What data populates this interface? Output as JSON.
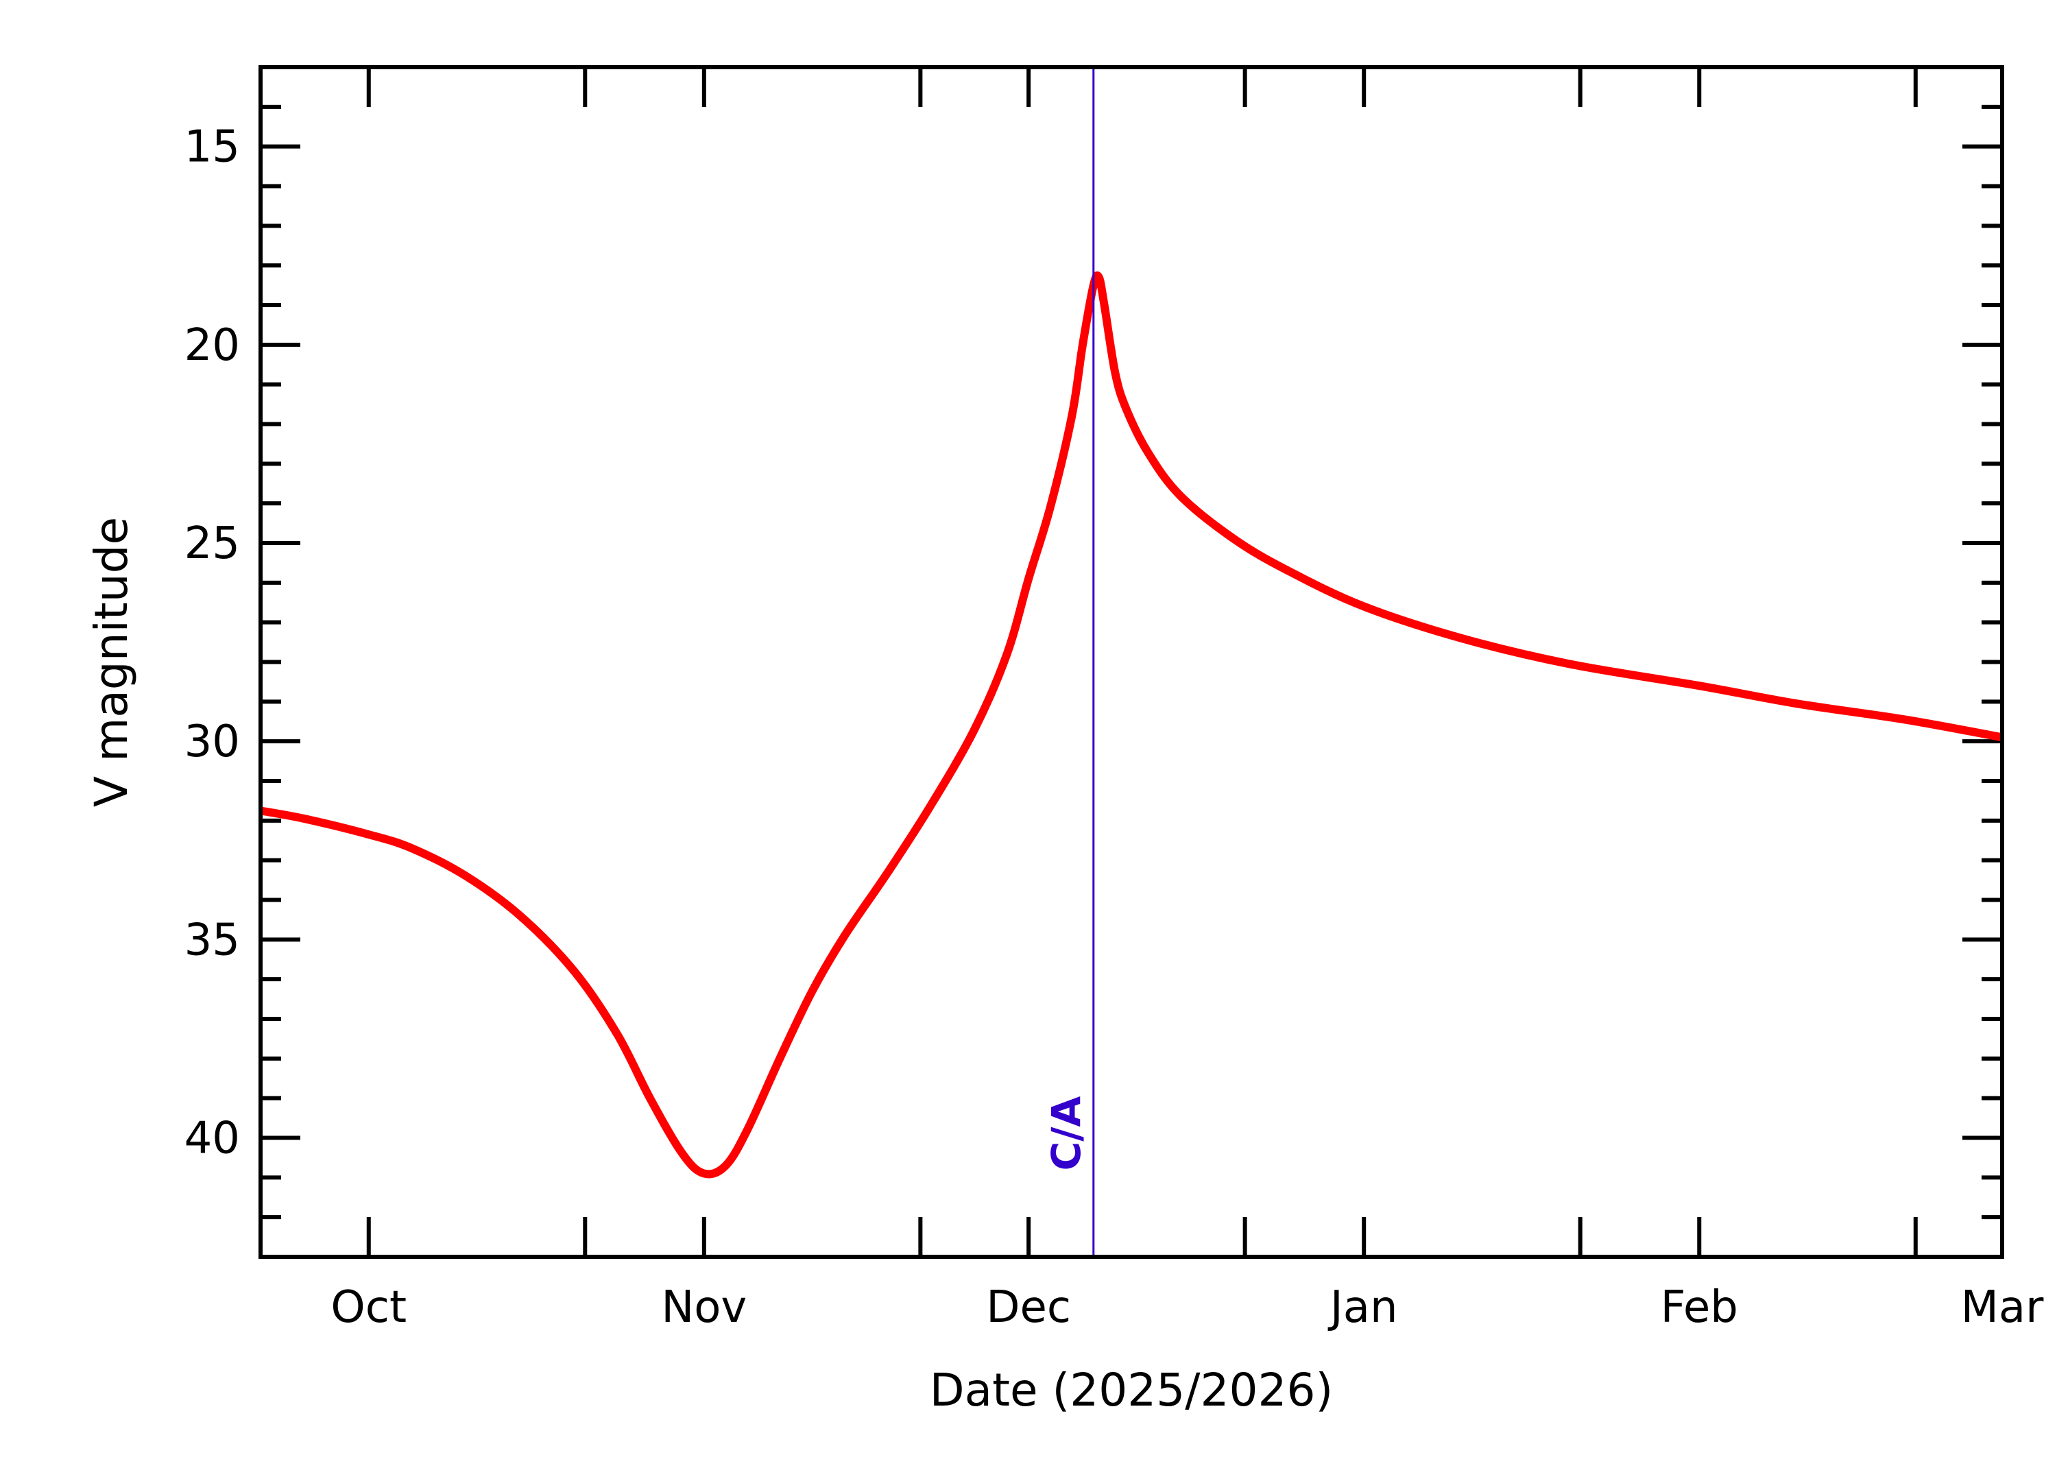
{
  "chart_data": {
    "type": "line",
    "xlabel": "Date (2025/2026)",
    "ylabel": "V magnitude",
    "x_axis": {
      "type": "date",
      "range": [
        "2025-09-21",
        "2026-03-01"
      ],
      "tick_labels": [
        {
          "label": "Oct",
          "date": "2025-10-01"
        },
        {
          "label": "Nov",
          "date": "2025-11-01"
        },
        {
          "label": "Dec",
          "date": "2025-12-01"
        },
        {
          "label": "Jan",
          "date": "2026-01-01"
        },
        {
          "label": "Feb",
          "date": "2026-02-01"
        },
        {
          "label": "Mar",
          "date": "2026-03-01"
        }
      ],
      "major_tick_dates": [
        "2025-09-21",
        "2025-10-01",
        "2025-10-21",
        "2025-11-01",
        "2025-11-21",
        "2025-12-01",
        "2025-12-21",
        "2026-01-01",
        "2026-01-21",
        "2026-02-01",
        "2026-02-21"
      ]
    },
    "y_axis": {
      "range": [
        43,
        13
      ],
      "inverted": true,
      "major_ticks": [
        15,
        20,
        25,
        30,
        35,
        40
      ],
      "tick_labels": [
        "15",
        "20",
        "25",
        "30",
        "35",
        "40"
      ],
      "minor_step": 1
    },
    "grid": false,
    "legend": "none",
    "annotation": {
      "label": "C/A",
      "date": "2025-12-07",
      "color": "#3300cc"
    },
    "series": [
      {
        "color": "#ff0000",
        "points": [
          {
            "x": "2025-09-21",
            "y": 31.75
          },
          {
            "x": "2025-09-25",
            "y": 31.95
          },
          {
            "x": "2025-10-01",
            "y": 32.35
          },
          {
            "x": "2025-10-05",
            "y": 32.7
          },
          {
            "x": "2025-10-10",
            "y": 33.4
          },
          {
            "x": "2025-10-15",
            "y": 34.4
          },
          {
            "x": "2025-10-20",
            "y": 35.8
          },
          {
            "x": "2025-10-24",
            "y": 37.4
          },
          {
            "x": "2025-10-27",
            "y": 39.0
          },
          {
            "x": "2025-10-30",
            "y": 40.4
          },
          {
            "x": "2025-11-01",
            "y": 40.9
          },
          {
            "x": "2025-11-03",
            "y": 40.7
          },
          {
            "x": "2025-11-05",
            "y": 39.8
          },
          {
            "x": "2025-11-08",
            "y": 38.0
          },
          {
            "x": "2025-11-11",
            "y": 36.3
          },
          {
            "x": "2025-11-14",
            "y": 34.9
          },
          {
            "x": "2025-11-18",
            "y": 33.3
          },
          {
            "x": "2025-11-22",
            "y": 31.6
          },
          {
            "x": "2025-11-26",
            "y": 29.7
          },
          {
            "x": "2025-11-29",
            "y": 27.8
          },
          {
            "x": "2025-12-01",
            "y": 25.9
          },
          {
            "x": "2025-12-03",
            "y": 24.1
          },
          {
            "x": "2025-12-05",
            "y": 21.8
          },
          {
            "x": "2025-12-06",
            "y": 20.0
          },
          {
            "x": "2025-12-07",
            "y": 18.5
          },
          {
            "x": "2025-12-07.5",
            "y": 18.3
          },
          {
            "x": "2025-12-08",
            "y": 19.0
          },
          {
            "x": "2025-12-09",
            "y": 20.7
          },
          {
            "x": "2025-12-10",
            "y": 21.6
          },
          {
            "x": "2025-12-12",
            "y": 22.7
          },
          {
            "x": "2025-12-15",
            "y": 23.8
          },
          {
            "x": "2025-12-20",
            "y": 24.9
          },
          {
            "x": "2025-12-25",
            "y": 25.7
          },
          {
            "x": "2026-01-01",
            "y": 26.6
          },
          {
            "x": "2026-01-10",
            "y": 27.4
          },
          {
            "x": "2026-01-20",
            "y": 28.05
          },
          {
            "x": "2026-02-01",
            "y": 28.6
          },
          {
            "x": "2026-02-10",
            "y": 29.05
          },
          {
            "x": "2026-02-20",
            "y": 29.45
          },
          {
            "x": "2026-03-01",
            "y": 29.9
          }
        ]
      }
    ]
  }
}
